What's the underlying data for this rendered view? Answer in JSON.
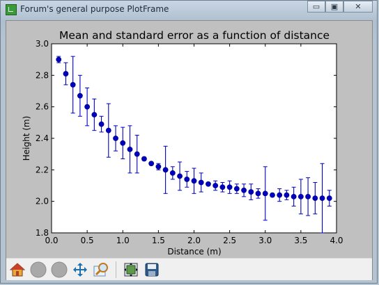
{
  "window": {
    "title": "Forum's general purpose PlotFrame",
    "minimize_label": "▭",
    "maximize_label": "▣",
    "close_label": "✕"
  },
  "toolbar": {
    "buttons": [
      {
        "name": "home-button",
        "icon": "home-icon"
      },
      {
        "name": "back-button",
        "icon": "back-icon"
      },
      {
        "name": "forward-button",
        "icon": "forward-icon"
      },
      {
        "name": "pan-button",
        "icon": "pan-arrows-icon"
      },
      {
        "name": "zoom-button",
        "icon": "zoom-icon"
      },
      {
        "name": "subplots-button",
        "icon": "subplots-icon"
      },
      {
        "name": "save-button",
        "icon": "save-icon"
      }
    ]
  },
  "colors": {
    "marker": "#0000bf",
    "background": "#c0c0c0"
  },
  "chart_data": {
    "type": "scatter",
    "title": "Mean and standard error as a function of distance",
    "xlabel": "Distance (m)",
    "ylabel": "Height (m)",
    "xlim": [
      0.0,
      4.0
    ],
    "ylim": [
      1.8,
      3.0
    ],
    "xticks": [
      "0.0",
      "0.5",
      "1.0",
      "1.5",
      "2.0",
      "2.5",
      "3.0",
      "3.5",
      "4.0"
    ],
    "yticks": [
      "1.8",
      "2.0",
      "2.2",
      "2.4",
      "2.6",
      "2.8",
      "3.0"
    ],
    "grid": false,
    "series": [
      {
        "x": [
          0.1,
          0.2,
          0.3,
          0.4,
          0.5,
          0.6,
          0.7,
          0.8,
          0.9,
          1.0,
          1.1,
          1.2,
          1.3,
          1.4,
          1.5,
          1.6,
          1.7,
          1.8,
          1.9,
          2.0,
          2.1,
          2.2,
          2.3,
          2.4,
          2.5,
          2.6,
          2.7,
          2.8,
          2.9,
          3.0,
          3.1,
          3.2,
          3.3,
          3.4,
          3.5,
          3.6,
          3.7,
          3.8,
          3.9
        ],
        "y": [
          2.9,
          2.81,
          2.74,
          2.67,
          2.6,
          2.55,
          2.49,
          2.45,
          2.4,
          2.37,
          2.33,
          2.3,
          2.27,
          2.24,
          2.22,
          2.2,
          2.18,
          2.16,
          2.14,
          2.13,
          2.12,
          2.11,
          2.1,
          2.09,
          2.09,
          2.08,
          2.07,
          2.06,
          2.05,
          2.05,
          2.04,
          2.04,
          2.04,
          2.03,
          2.03,
          2.03,
          2.02,
          2.02,
          2.02
        ],
        "yerr": [
          0.02,
          0.07,
          0.18,
          0.13,
          0.12,
          0.1,
          0.05,
          0.17,
          0.08,
          0.1,
          0.15,
          0.12,
          0.01,
          0.01,
          0.02,
          0.15,
          0.04,
          0.09,
          0.05,
          0.08,
          0.06,
          0.01,
          0.03,
          0.03,
          0.04,
          0.03,
          0.04,
          0.05,
          0.03,
          0.17,
          0.01,
          0.04,
          0.03,
          0.06,
          0.11,
          0.12,
          0.1,
          0.22,
          0.05
        ]
      }
    ]
  }
}
